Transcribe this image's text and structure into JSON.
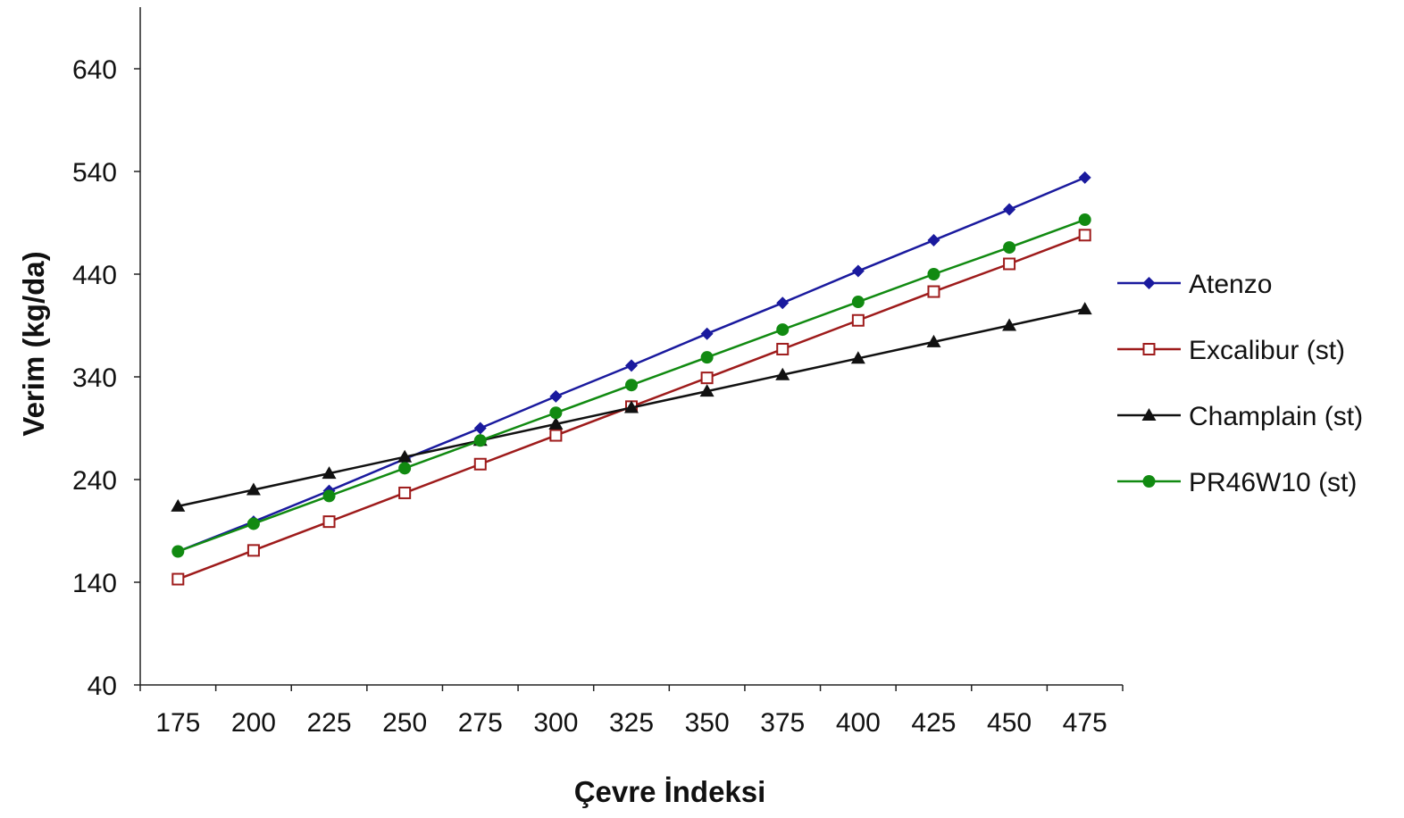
{
  "chart_data": {
    "type": "line",
    "xlabel": "Çevre İndeksi",
    "ylabel": "Verim (kg/da)",
    "categories": [
      "175",
      "200",
      "225",
      "250",
      "275",
      "300",
      "325",
      "350",
      "375",
      "400",
      "425",
      "450",
      "475"
    ],
    "ylim": [
      40,
      700
    ],
    "yticks": [
      40,
      140,
      240,
      340,
      440,
      540,
      640
    ],
    "grid": false,
    "legend_position": "right",
    "series": [
      {
        "name": "Atenzo",
        "color": "#1a1a9e",
        "marker": "diamond",
        "values": [
          170,
          199,
          229,
          260,
          290,
          321,
          351,
          382,
          412,
          443,
          473,
          503,
          534
        ]
      },
      {
        "name": "Excalibur (st)",
        "color": "#9e1b1b",
        "marker": "open-square",
        "values": [
          143,
          171,
          199,
          227,
          255,
          283,
          311,
          339,
          367,
          395,
          423,
          450,
          478
        ]
      },
      {
        "name": "Champlain (st)",
        "color": "#111111",
        "marker": "triangle",
        "values": [
          214,
          230,
          246,
          262,
          278,
          294,
          310,
          326,
          342,
          358,
          374,
          390,
          406
        ]
      },
      {
        "name": "PR46W10 (st)",
        "color": "#118a11",
        "marker": "circle",
        "values": [
          170,
          197,
          224,
          251,
          278,
          305,
          332,
          359,
          386,
          413,
          440,
          466,
          493
        ]
      }
    ]
  }
}
